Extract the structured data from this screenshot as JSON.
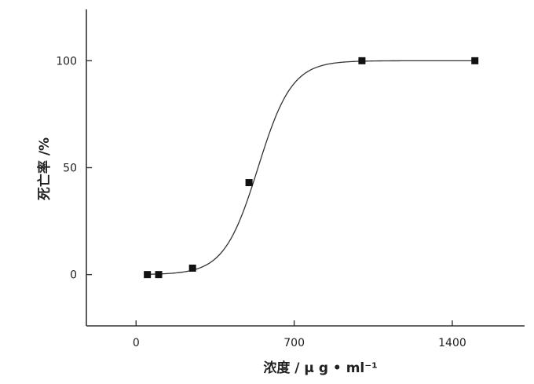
{
  "chart_data": {
    "type": "scatter",
    "title": "",
    "xlabel": "浓度 / μ g • ml⁻¹",
    "ylabel": "死亡率 /%",
    "xlim": [
      -220,
      1720
    ],
    "ylim": [
      -24,
      124
    ],
    "x_ticks": [
      0,
      700,
      1400
    ],
    "x_tick_labels": [
      "0",
      "700",
      "1400"
    ],
    "y_ticks": [
      0,
      50,
      100
    ],
    "y_tick_labels": [
      "0",
      "50",
      "100"
    ],
    "grid": false,
    "legend": "none",
    "series": [
      {
        "values_x": [
          50,
          100,
          250,
          500,
          1000,
          1500
        ],
        "values_y": [
          0,
          0,
          3,
          43,
          100,
          100
        ],
        "marker": "square",
        "color": "#111111"
      }
    ],
    "fit_curve": {
      "kind": "sigmoid",
      "x_range": [
        50,
        1500
      ],
      "midpoint_x": 540,
      "slope_width": 75,
      "y_min": 0,
      "y_max": 100,
      "color": "#333333"
    }
  }
}
